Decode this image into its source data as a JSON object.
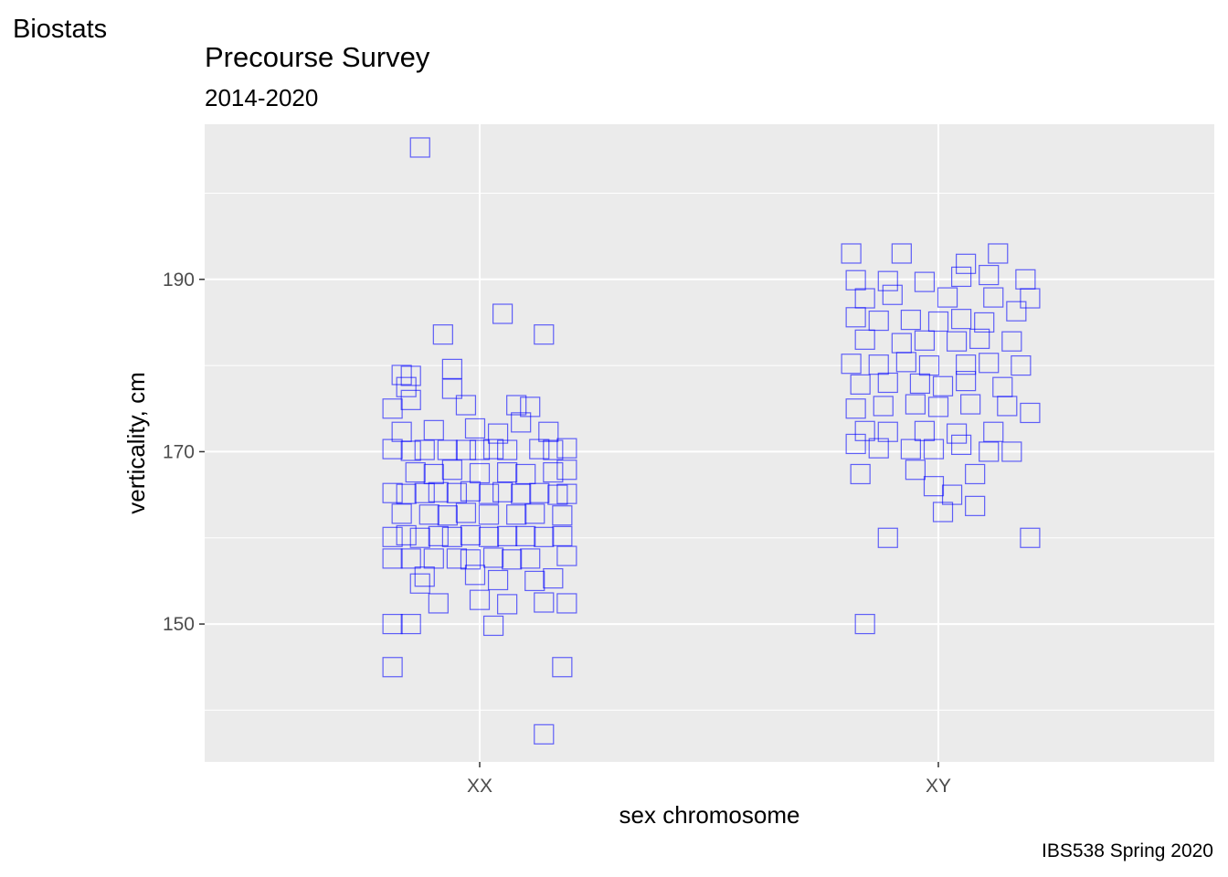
{
  "tag": "Biostats",
  "caption": "IBS538 Spring 2020",
  "chart_data": {
    "type": "scatter",
    "title": "Precourse Survey",
    "subtitle": "2014-2020",
    "xlabel": "sex chromosome",
    "ylabel": "verticality, cm",
    "categories": [
      "XX",
      "XY"
    ],
    "ylim": [
      134,
      208
    ],
    "yticks": [
      150,
      170,
      190
    ],
    "grid": true,
    "marker": "open-square",
    "color": "#0000ff",
    "series": [
      {
        "category": "XX",
        "points": [
          [
            -0.13,
            205.3
          ],
          [
            0.05,
            186.0
          ],
          [
            -0.08,
            183.6
          ],
          [
            0.14,
            183.6
          ],
          [
            -0.06,
            179.6
          ],
          [
            -0.17,
            178.9
          ],
          [
            -0.15,
            178.8
          ],
          [
            -0.16,
            177.5
          ],
          [
            -0.06,
            177.3
          ],
          [
            -0.15,
            176.0
          ],
          [
            -0.03,
            175.4
          ],
          [
            -0.19,
            175.0
          ],
          [
            0.08,
            175.4
          ],
          [
            0.11,
            175.2
          ],
          [
            -0.17,
            172.3
          ],
          [
            -0.1,
            172.5
          ],
          [
            -0.01,
            172.7
          ],
          [
            0.04,
            172.1
          ],
          [
            0.15,
            172.3
          ],
          [
            0.09,
            173.4
          ],
          [
            -0.19,
            170.3
          ],
          [
            -0.15,
            170.1
          ],
          [
            -0.12,
            170.2
          ],
          [
            -0.07,
            170.2
          ],
          [
            -0.03,
            170.2
          ],
          [
            0.0,
            170.2
          ],
          [
            0.03,
            170.3
          ],
          [
            0.06,
            170.2
          ],
          [
            0.13,
            170.3
          ],
          [
            0.16,
            170.2
          ],
          [
            0.19,
            170.4
          ],
          [
            -0.14,
            167.6
          ],
          [
            -0.1,
            167.4
          ],
          [
            -0.06,
            167.9
          ],
          [
            0.0,
            167.5
          ],
          [
            0.06,
            167.6
          ],
          [
            0.1,
            167.4
          ],
          [
            0.16,
            167.6
          ],
          [
            0.19,
            167.9
          ],
          [
            -0.19,
            165.2
          ],
          [
            -0.16,
            165.1
          ],
          [
            -0.12,
            165.2
          ],
          [
            -0.09,
            165.3
          ],
          [
            -0.05,
            165.2
          ],
          [
            -0.02,
            165.4
          ],
          [
            0.02,
            165.1
          ],
          [
            0.05,
            165.3
          ],
          [
            0.09,
            165.1
          ],
          [
            0.13,
            165.2
          ],
          [
            0.17,
            165.0
          ],
          [
            0.19,
            165.1
          ],
          [
            -0.17,
            162.8
          ],
          [
            -0.11,
            162.7
          ],
          [
            -0.07,
            162.6
          ],
          [
            -0.03,
            162.9
          ],
          [
            0.02,
            162.7
          ],
          [
            0.08,
            162.7
          ],
          [
            0.12,
            162.8
          ],
          [
            0.18,
            162.6
          ],
          [
            -0.19,
            160.1
          ],
          [
            -0.16,
            160.3
          ],
          [
            -0.13,
            160.0
          ],
          [
            -0.09,
            160.2
          ],
          [
            -0.06,
            160.1
          ],
          [
            -0.02,
            160.3
          ],
          [
            0.02,
            160.1
          ],
          [
            0.06,
            160.2
          ],
          [
            0.1,
            160.2
          ],
          [
            0.14,
            160.1
          ],
          [
            0.18,
            160.2
          ],
          [
            -0.19,
            157.6
          ],
          [
            -0.15,
            157.6
          ],
          [
            -0.1,
            157.6
          ],
          [
            -0.05,
            157.6
          ],
          [
            -0.02,
            157.5
          ],
          [
            0.03,
            157.7
          ],
          [
            0.07,
            157.5
          ],
          [
            0.11,
            157.6
          ],
          [
            0.19,
            157.9
          ],
          [
            -0.13,
            154.7
          ],
          [
            -0.12,
            155.5
          ],
          [
            -0.01,
            155.7
          ],
          [
            0.04,
            155.1
          ],
          [
            0.12,
            155.0
          ],
          [
            0.16,
            155.3
          ],
          [
            -0.09,
            152.4
          ],
          [
            0.0,
            152.8
          ],
          [
            0.06,
            152.3
          ],
          [
            0.14,
            152.5
          ],
          [
            0.19,
            152.4
          ],
          [
            -0.19,
            150.0
          ],
          [
            -0.15,
            150.0
          ],
          [
            0.03,
            149.8
          ],
          [
            -0.19,
            145.0
          ],
          [
            0.18,
            145.0
          ],
          [
            0.14,
            137.2
          ]
        ]
      },
      {
        "category": "XY",
        "points": [
          [
            -0.19,
            193.0
          ],
          [
            -0.08,
            193.0
          ],
          [
            0.06,
            191.8
          ],
          [
            0.13,
            193.0
          ],
          [
            -0.18,
            189.9
          ],
          [
            -0.11,
            189.8
          ],
          [
            -0.03,
            189.7
          ],
          [
            0.05,
            190.3
          ],
          [
            0.11,
            190.5
          ],
          [
            0.19,
            190.0
          ],
          [
            -0.16,
            187.8
          ],
          [
            -0.1,
            188.2
          ],
          [
            0.02,
            187.9
          ],
          [
            0.12,
            187.9
          ],
          [
            0.2,
            187.8
          ],
          [
            -0.18,
            185.6
          ],
          [
            -0.13,
            185.2
          ],
          [
            -0.06,
            185.3
          ],
          [
            0.0,
            185.1
          ],
          [
            0.05,
            185.4
          ],
          [
            0.1,
            185.0
          ],
          [
            0.17,
            186.3
          ],
          [
            -0.16,
            183.0
          ],
          [
            -0.08,
            182.6
          ],
          [
            -0.03,
            182.9
          ],
          [
            0.04,
            182.8
          ],
          [
            0.09,
            183.1
          ],
          [
            0.16,
            182.8
          ],
          [
            -0.19,
            180.2
          ],
          [
            -0.13,
            180.1
          ],
          [
            -0.07,
            180.4
          ],
          [
            -0.02,
            180.0
          ],
          [
            0.06,
            180.1
          ],
          [
            0.11,
            180.3
          ],
          [
            0.18,
            180.0
          ],
          [
            -0.17,
            177.8
          ],
          [
            -0.11,
            178.0
          ],
          [
            -0.04,
            177.9
          ],
          [
            0.01,
            177.6
          ],
          [
            0.06,
            178.2
          ],
          [
            0.14,
            177.5
          ],
          [
            -0.18,
            175.0
          ],
          [
            -0.12,
            175.3
          ],
          [
            -0.05,
            175.5
          ],
          [
            0.0,
            175.2
          ],
          [
            0.07,
            175.5
          ],
          [
            0.15,
            175.3
          ],
          [
            0.2,
            174.5
          ],
          [
            -0.16,
            172.4
          ],
          [
            -0.11,
            172.3
          ],
          [
            -0.03,
            172.4
          ],
          [
            0.04,
            172.1
          ],
          [
            0.12,
            172.3
          ],
          [
            -0.18,
            170.9
          ],
          [
            -0.13,
            170.4
          ],
          [
            -0.06,
            170.3
          ],
          [
            -0.01,
            170.3
          ],
          [
            0.05,
            170.8
          ],
          [
            0.11,
            170.0
          ],
          [
            0.16,
            170.0
          ],
          [
            -0.17,
            167.4
          ],
          [
            -0.05,
            167.9
          ],
          [
            -0.01,
            166.0
          ],
          [
            0.03,
            165.0
          ],
          [
            0.08,
            167.4
          ],
          [
            0.01,
            163.0
          ],
          [
            0.08,
            163.7
          ],
          [
            -0.11,
            160.0
          ],
          [
            0.2,
            160.0
          ],
          [
            -0.16,
            150.0
          ]
        ]
      }
    ]
  }
}
